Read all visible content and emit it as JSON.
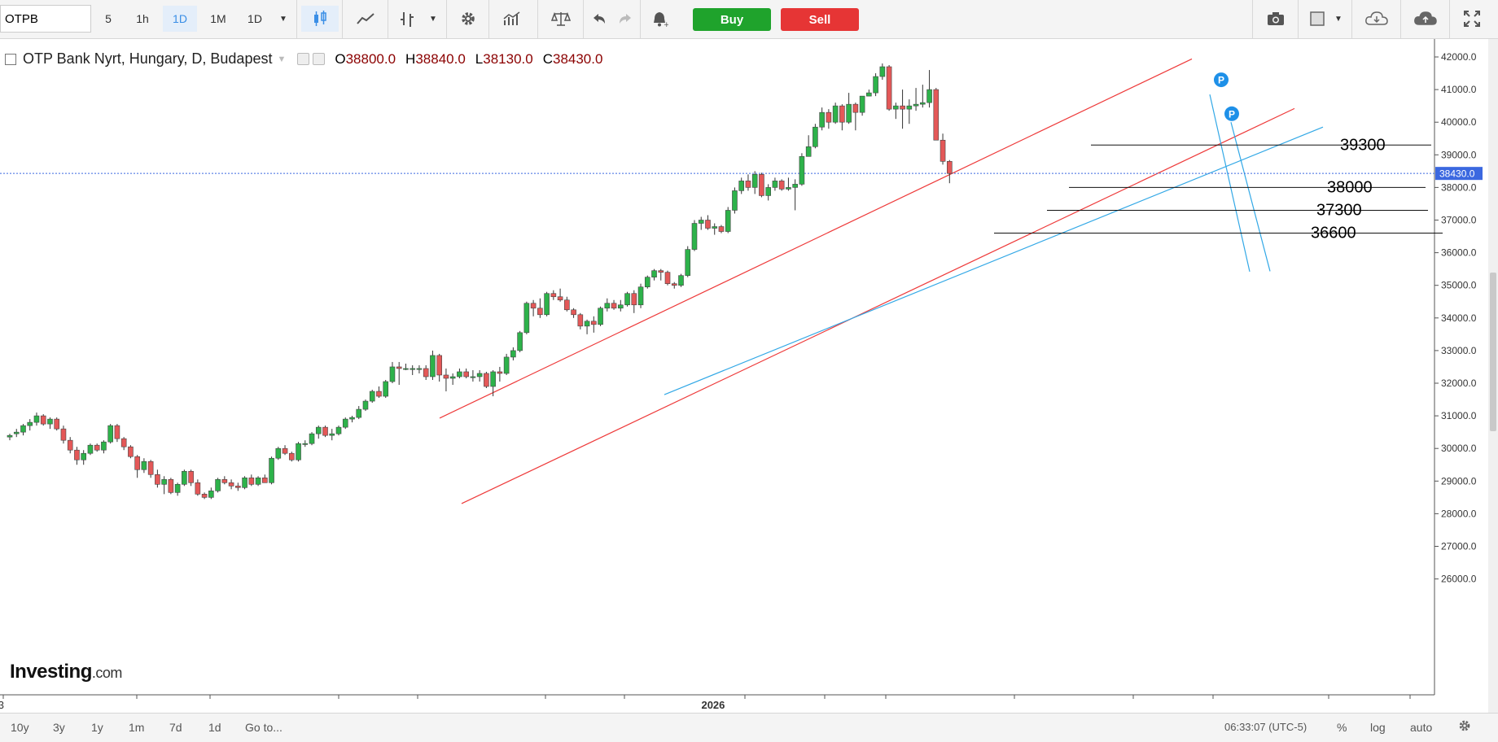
{
  "toolbar": {
    "symbol": "OTPB",
    "intervals": [
      "5",
      "1h",
      "1D",
      "1M",
      "1D"
    ],
    "active_interval_index": 2,
    "buy_label": "Buy",
    "sell_label": "Sell",
    "colors": {
      "buy": "#1fa32c",
      "sell": "#e63535",
      "accent": "#3a8ee6"
    }
  },
  "legend": {
    "title": "OTP Bank Nyrt, Hungary, D, Budapest",
    "open_label": "O",
    "open": "38800.0",
    "high_label": "H",
    "high": "38840.0",
    "low_label": "L",
    "low": "38130.0",
    "close_label": "C",
    "close": "38430.0"
  },
  "watermark": {
    "brand": "Investing",
    "suffix": ".com"
  },
  "chart_data": {
    "type": "candlestick",
    "title": "OTP Bank Nyrt, Hungary, D, Budapest",
    "ylim": [
      25500,
      42300
    ],
    "y_ticks": [
      "42000.0",
      "41000.0",
      "40000.0",
      "39000.0",
      "38000.0",
      "37000.0",
      "36000.0",
      "35000.0",
      "34000.0",
      "33000.0",
      "32000.0",
      "31000.0",
      "30000.0",
      "29000.0",
      "28000.0",
      "27000.0",
      "26000.0"
    ],
    "x_labels": [
      {
        "text": "3",
        "bar": -1
      },
      {
        "text": "2026",
        "bar": 104
      }
    ],
    "last_price_label": "38430.0",
    "last_price": 38430,
    "candles": [
      [
        30350,
        30450,
        30250,
        30400
      ],
      [
        30450,
        30600,
        30350,
        30500
      ],
      [
        30500,
        30750,
        30400,
        30700
      ],
      [
        30700,
        30900,
        30550,
        30800
      ],
      [
        30800,
        31100,
        30700,
        31000
      ],
      [
        31000,
        31050,
        30700,
        30750
      ],
      [
        30750,
        30950,
        30600,
        30900
      ],
      [
        30900,
        30950,
        30550,
        30600
      ],
      [
        30600,
        30700,
        30150,
        30250
      ],
      [
        30250,
        30350,
        29850,
        29950
      ],
      [
        29950,
        30050,
        29500,
        29650
      ],
      [
        29650,
        29950,
        29500,
        29850
      ],
      [
        29850,
        30150,
        29800,
        30100
      ],
      [
        30100,
        30150,
        29900,
        29950
      ],
      [
        29950,
        30250,
        29850,
        30200
      ],
      [
        30200,
        30750,
        30150,
        30700
      ],
      [
        30700,
        30750,
        30200,
        30300
      ],
      [
        30300,
        30350,
        29950,
        30050
      ],
      [
        30050,
        30100,
        29700,
        29750
      ],
      [
        29750,
        29800,
        29100,
        29350
      ],
      [
        29350,
        29700,
        29250,
        29600
      ],
      [
        29600,
        29650,
        29100,
        29200
      ],
      [
        29200,
        29350,
        28800,
        28900
      ],
      [
        28900,
        29150,
        28600,
        29050
      ],
      [
        29050,
        29100,
        28600,
        28650
      ],
      [
        28650,
        28950,
        28550,
        28900
      ],
      [
        28900,
        29350,
        28850,
        29300
      ],
      [
        29300,
        29350,
        28850,
        28950
      ],
      [
        28950,
        29050,
        28550,
        28600
      ],
      [
        28600,
        28650,
        28450,
        28500
      ],
      [
        28500,
        28800,
        28450,
        28700
      ],
      [
        28700,
        29100,
        28650,
        29050
      ],
      [
        29050,
        29150,
        28900,
        28950
      ],
      [
        28950,
        29050,
        28750,
        28850
      ],
      [
        28850,
        28950,
        28700,
        28800
      ],
      [
        28800,
        29150,
        28750,
        29100
      ],
      [
        29100,
        29200,
        28850,
        28900
      ],
      [
        28900,
        29150,
        28850,
        29100
      ],
      [
        29100,
        29200,
        28950,
        28950
      ],
      [
        28950,
        29750,
        28900,
        29700
      ],
      [
        29700,
        30050,
        29650,
        30000
      ],
      [
        30000,
        30100,
        29800,
        29850
      ],
      [
        29850,
        29900,
        29600,
        29650
      ],
      [
        29650,
        30200,
        29600,
        30150
      ],
      [
        30150,
        30250,
        30050,
        30150
      ],
      [
        30150,
        30500,
        30100,
        30450
      ],
      [
        30450,
        30700,
        30300,
        30650
      ],
      [
        30650,
        30700,
        30350,
        30400
      ],
      [
        30400,
        30600,
        30250,
        30450
      ],
      [
        30450,
        30700,
        30400,
        30650
      ],
      [
        30650,
        30950,
        30600,
        30900
      ],
      [
        30900,
        31000,
        30800,
        30950
      ],
      [
        30950,
        31300,
        30900,
        31200
      ],
      [
        31200,
        31500,
        31150,
        31450
      ],
      [
        31450,
        31800,
        31400,
        31750
      ],
      [
        31750,
        31900,
        31550,
        31600
      ],
      [
        31600,
        32100,
        31550,
        32050
      ],
      [
        32050,
        32650,
        32000,
        32500
      ],
      [
        32500,
        32650,
        31950,
        32450
      ],
      [
        32450,
        32600,
        32400,
        32450
      ],
      [
        32450,
        32550,
        32250,
        32450
      ],
      [
        32450,
        32550,
        32300,
        32450
      ],
      [
        32450,
        32550,
        32100,
        32200
      ],
      [
        32200,
        33000,
        32100,
        32850
      ],
      [
        32850,
        32900,
        32050,
        32250
      ],
      [
        32250,
        32450,
        31750,
        32150
      ],
      [
        32150,
        32300,
        31950,
        32200
      ],
      [
        32200,
        32450,
        32150,
        32350
      ],
      [
        32350,
        32450,
        32150,
        32200
      ],
      [
        32200,
        32400,
        32050,
        32200
      ],
      [
        32200,
        32400,
        32050,
        32300
      ],
      [
        32300,
        32350,
        31850,
        31900
      ],
      [
        31900,
        32400,
        31600,
        32350
      ],
      [
        32350,
        32500,
        32050,
        32300
      ],
      [
        32300,
        32900,
        32250,
        32800
      ],
      [
        32800,
        33100,
        32700,
        33000
      ],
      [
        33000,
        33600,
        32950,
        33550
      ],
      [
        33550,
        34500,
        33500,
        34450
      ],
      [
        34450,
        34550,
        34050,
        34300
      ],
      [
        34300,
        34600,
        34000,
        34100
      ],
      [
        34100,
        34800,
        34050,
        34750
      ],
      [
        34750,
        34850,
        34550,
        34650
      ],
      [
        34650,
        34900,
        34500,
        34550
      ],
      [
        34550,
        34650,
        34200,
        34250
      ],
      [
        34250,
        34300,
        34000,
        34100
      ],
      [
        34100,
        34150,
        33650,
        33750
      ],
      [
        33750,
        33950,
        33500,
        33900
      ],
      [
        33900,
        34050,
        33550,
        33800
      ],
      [
        33800,
        34350,
        33750,
        34300
      ],
      [
        34300,
        34600,
        34200,
        34450
      ],
      [
        34450,
        34550,
        34250,
        34300
      ],
      [
        34300,
        34550,
        34200,
        34400
      ],
      [
        34400,
        34800,
        34350,
        34750
      ],
      [
        34750,
        34850,
        34150,
        34400
      ],
      [
        34400,
        35050,
        34300,
        34950
      ],
      [
        34950,
        35300,
        34900,
        35250
      ],
      [
        35250,
        35500,
        35150,
        35450
      ],
      [
        35450,
        35500,
        35150,
        35400
      ],
      [
        35400,
        35450,
        35000,
        35050
      ],
      [
        35050,
        35100,
        34900,
        35000
      ],
      [
        35000,
        35350,
        34950,
        35300
      ],
      [
        35300,
        36200,
        35250,
        36100
      ],
      [
        36100,
        37000,
        36050,
        36900
      ],
      [
        36900,
        37100,
        36700,
        37000
      ],
      [
        37000,
        37150,
        36700,
        36750
      ],
      [
        36750,
        36900,
        36550,
        36800
      ],
      [
        36800,
        36850,
        36600,
        36650
      ],
      [
        36650,
        37400,
        36600,
        37300
      ],
      [
        37300,
        38000,
        37200,
        37900
      ],
      [
        37900,
        38300,
        37800,
        38200
      ],
      [
        38200,
        38400,
        37900,
        38000
      ],
      [
        38000,
        38500,
        37800,
        38400
      ],
      [
        38400,
        38450,
        37700,
        37750
      ],
      [
        37750,
        38100,
        37600,
        38000
      ],
      [
        38000,
        38300,
        37900,
        38200
      ],
      [
        38200,
        38250,
        37900,
        37950
      ],
      [
        37950,
        38300,
        37900,
        38000
      ],
      [
        38000,
        38250,
        37300,
        38100
      ],
      [
        38100,
        39050,
        38050,
        38950
      ],
      [
        38950,
        39600,
        38950,
        39250
      ],
      [
        39250,
        39950,
        39200,
        39850
      ],
      [
        39850,
        40450,
        39750,
        40300
      ],
      [
        40300,
        40400,
        39800,
        40000
      ],
      [
        40000,
        40600,
        39950,
        40500
      ],
      [
        40500,
        40550,
        39750,
        40000
      ],
      [
        40000,
        40900,
        39950,
        40550
      ],
      [
        40550,
        40600,
        39750,
        40300
      ],
      [
        40300,
        40800,
        40200,
        40800
      ],
      [
        40800,
        41000,
        40800,
        40900
      ],
      [
        40900,
        41500,
        40800,
        41400
      ],
      [
        41400,
        41800,
        41300,
        41700
      ],
      [
        41700,
        41750,
        40350,
        40400
      ],
      [
        40400,
        40600,
        40100,
        40500
      ],
      [
        40500,
        41000,
        39800,
        40400
      ],
      [
        40400,
        40700,
        39950,
        40500
      ],
      [
        40500,
        41050,
        40350,
        40550
      ],
      [
        40550,
        41150,
        40450,
        40600
      ],
      [
        40600,
        41600,
        40450,
        41000
      ],
      [
        41000,
        41050,
        39450,
        39450
      ],
      [
        39450,
        39650,
        38700,
        38800
      ],
      [
        38800,
        38840,
        38130,
        38430
      ]
    ],
    "annotations": [
      {
        "type": "hline",
        "label": "39300",
        "value": 39300
      },
      {
        "type": "hline",
        "label": "38000",
        "value": 38000
      },
      {
        "type": "hline",
        "label": "37300",
        "value": 37300
      },
      {
        "type": "hline",
        "label": "36600",
        "value": 36600
      }
    ],
    "markers": [
      "P",
      "P"
    ],
    "colors": {
      "up": "#2db24a",
      "down": "#e45858",
      "channel": "#ee3a3a",
      "trend": "#32a8e6",
      "price_line": "#3b68e0",
      "marker": "#1e90e8"
    }
  },
  "bottombar": {
    "ranges": [
      "10y",
      "3y",
      "1y",
      "1m",
      "7d",
      "1d",
      "Go to..."
    ],
    "clock": "06:33:07 (UTC-5)",
    "percent": "%",
    "log": "log",
    "auto": "auto"
  }
}
